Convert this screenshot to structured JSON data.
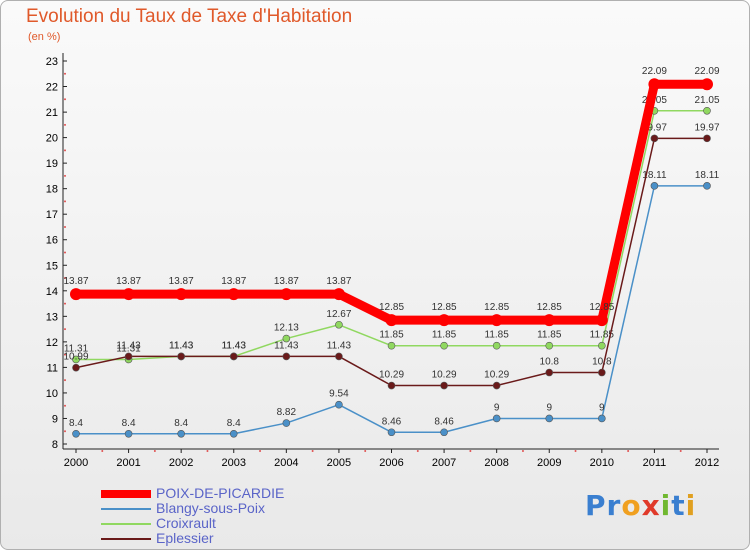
{
  "title": "Evolution du Taux de Taxe d'Habitation",
  "subtitle": "(en %)",
  "logo_letters": [
    "P",
    "r",
    "o",
    "x",
    "i",
    "t",
    "i"
  ],
  "logo_colors": [
    "#3a7fd0",
    "#3a7fd0",
    "#f0a020",
    "#e03a2a",
    "#70b830",
    "#3a7fd0",
    "#e0a020"
  ],
  "chart_data": {
    "type": "line",
    "title": "Evolution du Taux de Taxe d'Habitation",
    "ylabel": "(en %)",
    "xlabel": "",
    "x": [
      "2000",
      "2001",
      "2002",
      "2003",
      "2004",
      "2005",
      "2006",
      "2007",
      "2008",
      "2009",
      "2010",
      "2011",
      "2012"
    ],
    "ylim": [
      8,
      23
    ],
    "yticks": [
      "8",
      "9",
      "10",
      "11",
      "12",
      "13",
      "14",
      "15",
      "16",
      "17",
      "18",
      "19",
      "20",
      "21",
      "22",
      "23"
    ],
    "grid": false,
    "legend": "bottom-left",
    "series": [
      {
        "name": "POIX-DE-PICARDIE",
        "color": "#ff0000",
        "values": [
          13.87,
          13.87,
          13.87,
          13.87,
          13.87,
          13.87,
          12.85,
          12.85,
          12.85,
          12.85,
          12.85,
          22.09,
          22.09
        ],
        "labels": [
          "13.87",
          "13.87",
          "13.87",
          "13.87",
          "13.87",
          "13.87",
          "12.85",
          "12.85",
          "12.85",
          "12.85",
          "12.85",
          "22.09",
          "22.09"
        ]
      },
      {
        "name": "Blangy-sous-Poix",
        "color": "#4a90c8",
        "values": [
          8.4,
          8.4,
          8.4,
          8.4,
          8.82,
          9.54,
          8.46,
          8.46,
          9,
          9,
          9,
          18.11,
          18.11
        ],
        "labels": [
          "8.4",
          "8.4",
          "8.4",
          "8.4",
          "8.82",
          "9.54",
          "8.46",
          "8.46",
          "9",
          "9",
          "9",
          "18.11",
          "18.11"
        ]
      },
      {
        "name": "Croixrault",
        "color": "#90d860",
        "values": [
          11.31,
          11.31,
          11.43,
          11.43,
          12.13,
          12.67,
          11.85,
          11.85,
          11.85,
          11.85,
          11.85,
          21.05,
          21.05
        ],
        "labels": [
          "11.31",
          "11.31",
          "11.43",
          "11.43",
          "12.13",
          "12.67",
          "11.85",
          "11.85",
          "11.85",
          "11.85",
          "11.85",
          "21.05",
          "21.05"
        ]
      },
      {
        "name": "Eplessier",
        "color": "#6a1a1a",
        "values": [
          10.99,
          11.43,
          11.43,
          11.43,
          11.43,
          11.43,
          10.29,
          10.29,
          10.29,
          10.8,
          10.8,
          19.97,
          19.97
        ],
        "labels": [
          "10.99",
          "11.43",
          "11.43",
          "11.43",
          "11.43",
          "11.43",
          "10.29",
          "10.29",
          "10.29",
          "10.8",
          "10.8",
          "19.97",
          "19.97"
        ]
      }
    ]
  }
}
